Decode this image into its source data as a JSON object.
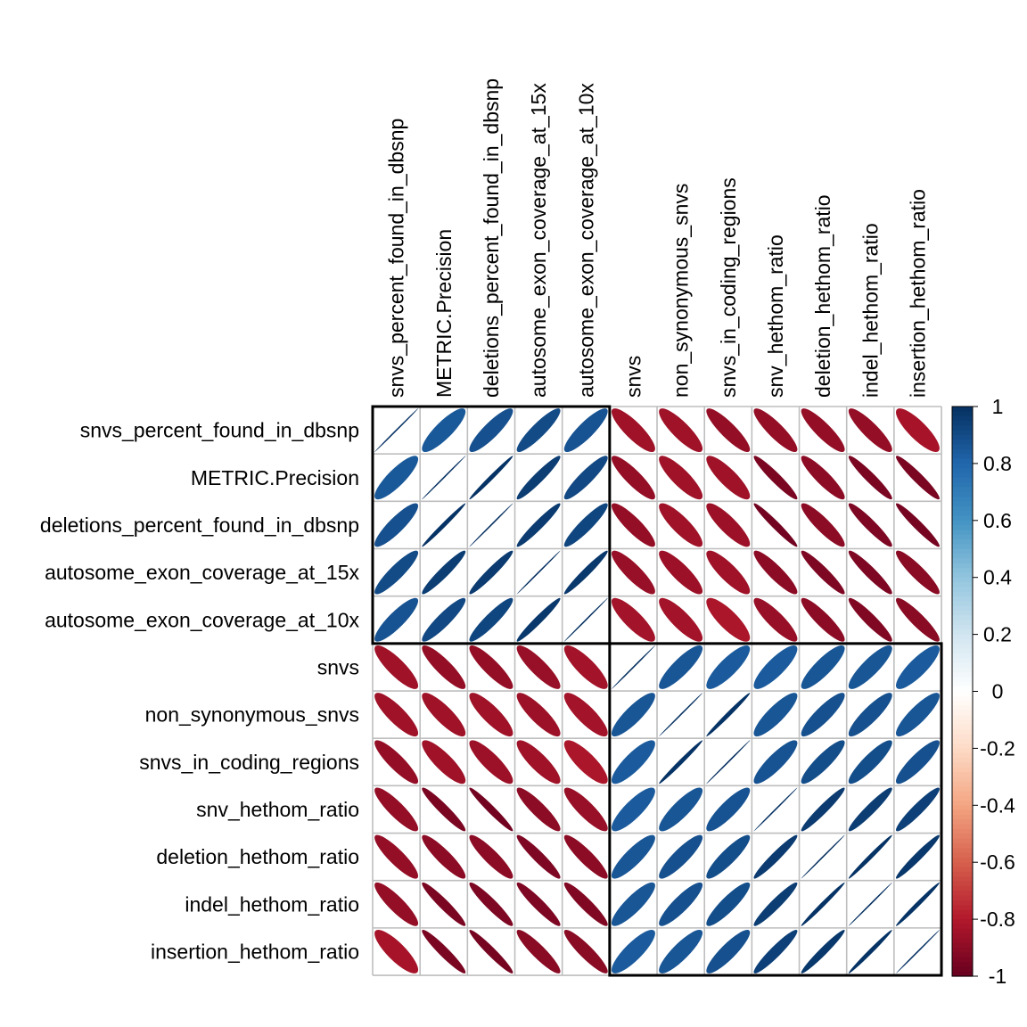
{
  "chart_data": {
    "type": "heatmap",
    "subtype": "correlation-matrix-ellipse",
    "variables": [
      "snvs_percent_found_in_dbsnp",
      "METRIC.Precision",
      "deletions_percent_found_in_dbsnp",
      "autosome_exon_coverage_at_15x",
      "autosome_exon_coverage_at_10x",
      "snvs",
      "non_synonymous_snvs",
      "snvs_in_coding_regions",
      "snv_hethom_ratio",
      "deletion_hethom_ratio",
      "indel_hethom_ratio",
      "insertion_hethom_ratio"
    ],
    "matrix": [
      [
        1.0,
        0.85,
        0.88,
        0.9,
        0.87,
        -0.85,
        -0.85,
        -0.88,
        -0.88,
        -0.88,
        -0.88,
        -0.83
      ],
      [
        0.85,
        1.0,
        0.99,
        0.95,
        0.91,
        -0.88,
        -0.85,
        -0.85,
        -0.95,
        -0.9,
        -0.95,
        -0.95
      ],
      [
        0.88,
        0.99,
        1.0,
        0.96,
        0.92,
        -0.88,
        -0.85,
        -0.86,
        -0.97,
        -0.9,
        -0.94,
        -0.96
      ],
      [
        0.9,
        0.95,
        0.96,
        1.0,
        0.97,
        -0.87,
        -0.86,
        -0.85,
        -0.9,
        -0.94,
        -0.94,
        -0.91
      ],
      [
        0.87,
        0.91,
        0.92,
        0.97,
        1.0,
        -0.84,
        -0.84,
        -0.82,
        -0.87,
        -0.9,
        -0.93,
        -0.91
      ],
      [
        -0.85,
        -0.88,
        -0.88,
        -0.87,
        -0.84,
        1.0,
        0.86,
        0.84,
        0.84,
        0.86,
        0.86,
        0.84
      ],
      [
        -0.85,
        -0.85,
        -0.85,
        -0.86,
        -0.84,
        0.86,
        1.0,
        0.99,
        0.86,
        0.88,
        0.88,
        0.86
      ],
      [
        -0.88,
        -0.85,
        -0.86,
        -0.85,
        -0.82,
        0.84,
        0.99,
        1.0,
        0.87,
        0.89,
        0.89,
        0.88
      ],
      [
        -0.88,
        -0.95,
        -0.97,
        -0.9,
        -0.87,
        0.84,
        0.86,
        0.87,
        1.0,
        0.96,
        0.95,
        0.94
      ],
      [
        -0.88,
        -0.9,
        -0.9,
        -0.94,
        -0.9,
        0.86,
        0.88,
        0.89,
        0.96,
        1.0,
        0.99,
        0.97
      ],
      [
        -0.88,
        -0.95,
        -0.94,
        -0.94,
        -0.93,
        0.86,
        0.88,
        0.89,
        0.95,
        0.99,
        1.0,
        0.99
      ],
      [
        -0.83,
        -0.95,
        -0.96,
        -0.91,
        -0.91,
        0.84,
        0.86,
        0.88,
        0.94,
        0.97,
        0.99,
        1.0
      ]
    ],
    "clusters": [
      {
        "start": 0,
        "end": 4
      },
      {
        "start": 5,
        "end": 11
      }
    ],
    "color_scale": {
      "range": [
        -1,
        1
      ],
      "stops": [
        {
          "value": -1.0,
          "color": "#67001F"
        },
        {
          "value": -0.8,
          "color": "#B2182B"
        },
        {
          "value": -0.6,
          "color": "#D6604D"
        },
        {
          "value": -0.4,
          "color": "#F4A582"
        },
        {
          "value": -0.2,
          "color": "#FDDBC7"
        },
        {
          "value": 0.0,
          "color": "#FFFFFF"
        },
        {
          "value": 0.2,
          "color": "#D1E5F0"
        },
        {
          "value": 0.4,
          "color": "#92C5DE"
        },
        {
          "value": 0.6,
          "color": "#4393C3"
        },
        {
          "value": 0.8,
          "color": "#2166AC"
        },
        {
          "value": 1.0,
          "color": "#053061"
        }
      ]
    },
    "legend": {
      "position": "right",
      "ticks": [
        "1",
        "0.8",
        "0.6",
        "0.4",
        "0.2",
        "0",
        "-0.2",
        "-0.4",
        "-0.6",
        "-0.8",
        "-1"
      ]
    },
    "grid": true
  }
}
